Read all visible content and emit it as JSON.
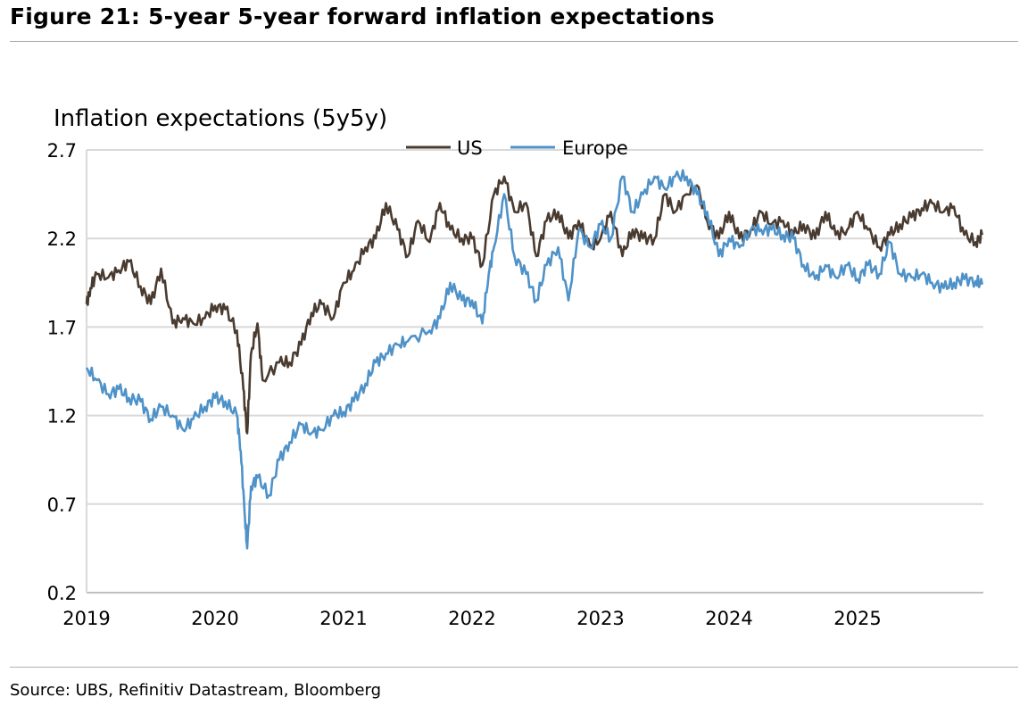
{
  "title": "Figure 21: 5-year 5-year forward inflation expectations",
  "source": "Source: UBS, Refinitiv Datastream, Bloomberg",
  "chart_data": {
    "type": "line",
    "title": "Inflation expectations (5y5y)",
    "xlabel": "",
    "ylabel": "Inflation expectations (5y5y)",
    "ylim": [
      0.2,
      2.7
    ],
    "xlim": [
      2019,
      2026
    ],
    "yticks": [
      "2.7",
      "2.2",
      "1.7",
      "1.2",
      "0.7",
      "0.2"
    ],
    "xticks": [
      "2019",
      "2020",
      "2021",
      "2022",
      "2023",
      "2024",
      "2025"
    ],
    "grid": true,
    "legend": "top-center",
    "colors": {
      "US": "#4a3b30",
      "Europe": "#4f92c8"
    },
    "series": [
      {
        "name": "US",
        "x": [
          2019.0,
          2019.03,
          2019.08,
          2019.17,
          2019.25,
          2019.33,
          2019.42,
          2019.5,
          2019.58,
          2019.67,
          2019.75,
          2019.83,
          2019.92,
          2020.0,
          2020.08,
          2020.17,
          2020.22,
          2020.25,
          2020.28,
          2020.33,
          2020.37,
          2020.5,
          2020.58,
          2020.67,
          2020.75,
          2020.83,
          2020.92,
          2021.0,
          2021.08,
          2021.17,
          2021.25,
          2021.33,
          2021.42,
          2021.5,
          2021.58,
          2021.67,
          2021.75,
          2021.83,
          2021.92,
          2022.0,
          2022.08,
          2022.17,
          2022.25,
          2022.33,
          2022.42,
          2022.5,
          2022.58,
          2022.67,
          2022.75,
          2022.83,
          2022.92,
          2023.0,
          2023.08,
          2023.17,
          2023.25,
          2023.33,
          2023.42,
          2023.5,
          2023.58,
          2023.67,
          2023.75,
          2023.83,
          2023.92,
          2024.0,
          2024.08,
          2024.17,
          2024.25,
          2024.33,
          2024.42,
          2024.5,
          2024.58,
          2024.67,
          2024.75,
          2024.83,
          2024.92,
          2025.0,
          2025.08,
          2025.17,
          2025.25,
          2025.33,
          2025.42,
          2025.5,
          2025.58,
          2025.67,
          2025.75,
          2025.83,
          2025.92,
          2025.97
        ],
        "values": [
          1.83,
          1.92,
          2.0,
          1.98,
          2.02,
          2.07,
          1.93,
          1.83,
          2.03,
          1.72,
          1.75,
          1.72,
          1.75,
          1.82,
          1.8,
          1.68,
          1.35,
          1.1,
          1.55,
          1.72,
          1.4,
          1.5,
          1.5,
          1.6,
          1.78,
          1.83,
          1.75,
          1.95,
          2.02,
          2.15,
          2.2,
          2.4,
          2.25,
          2.1,
          2.3,
          2.18,
          2.4,
          2.25,
          2.2,
          2.2,
          2.05,
          2.45,
          2.55,
          2.35,
          2.4,
          2.1,
          2.3,
          2.35,
          2.2,
          2.3,
          2.15,
          2.2,
          2.35,
          2.1,
          2.25,
          2.2,
          2.2,
          2.45,
          2.35,
          2.45,
          2.5,
          2.3,
          2.2,
          2.35,
          2.2,
          2.25,
          2.35,
          2.28,
          2.3,
          2.22,
          2.28,
          2.2,
          2.35,
          2.22,
          2.25,
          2.35,
          2.25,
          2.15,
          2.22,
          2.28,
          2.32,
          2.37,
          2.4,
          2.35,
          2.38,
          2.22,
          2.18,
          2.22
        ]
      },
      {
        "name": "Europe",
        "x": [
          2019.0,
          2019.08,
          2019.17,
          2019.25,
          2019.33,
          2019.42,
          2019.5,
          2019.58,
          2019.67,
          2019.75,
          2019.83,
          2019.92,
          2020.0,
          2020.08,
          2020.17,
          2020.2,
          2020.23,
          2020.25,
          2020.28,
          2020.33,
          2020.42,
          2020.5,
          2020.58,
          2020.67,
          2020.75,
          2020.83,
          2020.92,
          2021.0,
          2021.08,
          2021.17,
          2021.25,
          2021.33,
          2021.42,
          2021.5,
          2021.67,
          2021.75,
          2021.83,
          2021.92,
          2022.0,
          2022.08,
          2022.13,
          2022.17,
          2022.25,
          2022.33,
          2022.42,
          2022.5,
          2022.58,
          2022.67,
          2022.75,
          2022.83,
          2022.92,
          2023.0,
          2023.08,
          2023.17,
          2023.25,
          2023.33,
          2023.42,
          2023.5,
          2023.58,
          2023.67,
          2023.75,
          2023.83,
          2023.92,
          2024.0,
          2024.08,
          2024.17,
          2024.25,
          2024.33,
          2024.42,
          2024.5,
          2024.58,
          2024.67,
          2024.75,
          2024.83,
          2024.92,
          2025.0,
          2025.08,
          2025.17,
          2025.25,
          2025.33,
          2025.42,
          2025.5,
          2025.58,
          2025.67,
          2025.75,
          2025.83,
          2025.92,
          2025.97
        ],
        "values": [
          1.47,
          1.4,
          1.32,
          1.35,
          1.3,
          1.28,
          1.18,
          1.25,
          1.2,
          1.12,
          1.18,
          1.25,
          1.3,
          1.28,
          1.2,
          1.0,
          0.65,
          0.45,
          0.8,
          0.85,
          0.75,
          0.95,
          1.05,
          1.15,
          1.1,
          1.12,
          1.2,
          1.22,
          1.28,
          1.38,
          1.5,
          1.55,
          1.6,
          1.62,
          1.68,
          1.75,
          1.95,
          1.85,
          1.85,
          1.72,
          2.0,
          2.15,
          2.45,
          2.1,
          2.0,
          1.85,
          2.05,
          2.15,
          1.85,
          2.25,
          2.15,
          2.28,
          2.2,
          2.55,
          2.35,
          2.45,
          2.55,
          2.48,
          2.55,
          2.55,
          2.45,
          2.35,
          2.1,
          2.2,
          2.15,
          2.25,
          2.25,
          2.25,
          2.22,
          2.2,
          2.05,
          1.97,
          2.05,
          1.98,
          2.05,
          1.97,
          2.05,
          2.0,
          2.18,
          2.0,
          1.98,
          2.0,
          1.95,
          1.92,
          1.95,
          1.97,
          1.96,
          1.94
        ]
      }
    ]
  }
}
